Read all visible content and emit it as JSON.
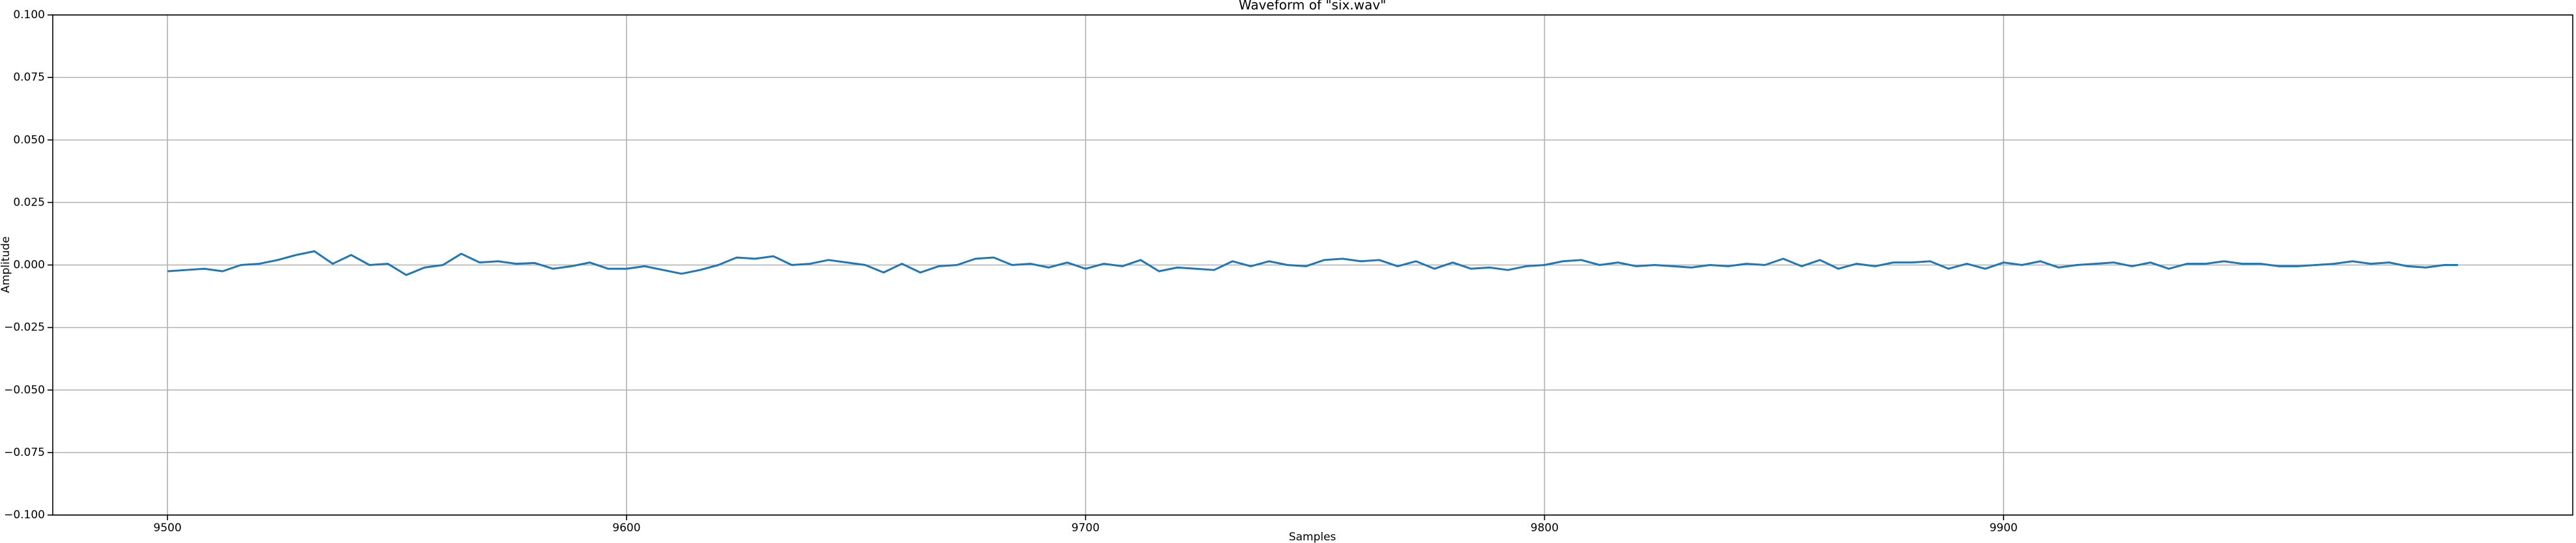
{
  "chart_data": {
    "type": "line",
    "title": "Waveform of \"six.wav\"",
    "x_label": "Samples",
    "y_label": "Amplitude",
    "x": [
      9500,
      9504,
      9508,
      9512,
      9516,
      9520,
      9524,
      9528,
      9532,
      9536,
      9540,
      9544,
      9548,
      9552,
      9556,
      9560,
      9564,
      9568,
      9572,
      9576,
      9580,
      9584,
      9588,
      9592,
      9596,
      9600,
      9604,
      9608,
      9612,
      9616,
      9620,
      9624,
      9628,
      9632,
      9636,
      9640,
      9644,
      9648,
      9652,
      9656,
      9660,
      9664,
      9668,
      9672,
      9676,
      9680,
      9684,
      9688,
      9692,
      9696,
      9700,
      9704,
      9708,
      9712,
      9716,
      9720,
      9724,
      9728,
      9732,
      9736,
      9740,
      9744,
      9748,
      9752,
      9756,
      9760,
      9764,
      9768,
      9772,
      9776,
      9780,
      9784,
      9788,
      9792,
      9796,
      9800,
      9804,
      9808,
      9812,
      9816,
      9820,
      9824,
      9828,
      9832,
      9836,
      9840,
      9844,
      9848,
      9852,
      9856,
      9860,
      9864,
      9868,
      9872,
      9876,
      9880,
      9884,
      9888,
      9892,
      9896,
      9900,
      9904,
      9908,
      9912,
      9916,
      9920,
      9924,
      9928,
      9932,
      9936,
      9940,
      9944,
      9948,
      9952,
      9956,
      9960,
      9964,
      9968,
      9972,
      9976,
      9980,
      9984,
      9988,
      9992,
      9996,
      9999
    ],
    "series": [
      {
        "color": "#1f77b4",
        "values": [
          -0.0025,
          -0.002,
          -0.0015,
          -0.0025,
          0.0,
          0.0005,
          0.002,
          0.004,
          0.0055,
          0.0005,
          0.004,
          0.0,
          0.0005,
          -0.004,
          -0.001,
          0.0,
          0.0045,
          0.001,
          0.0015,
          0.0005,
          0.0008,
          -0.0015,
          -0.0005,
          0.001,
          -0.0015,
          -0.0015,
          -0.0005,
          -0.002,
          -0.0035,
          -0.002,
          0.0,
          0.003,
          0.0025,
          0.0035,
          0.0,
          0.0005,
          0.002,
          0.001,
          0.0,
          -0.003,
          0.0005,
          -0.003,
          -0.0005,
          0.0,
          0.0025,
          0.003,
          0.0,
          0.0005,
          -0.001,
          0.001,
          -0.0015,
          0.0005,
          -0.0005,
          0.002,
          -0.0025,
          -0.001,
          -0.0015,
          -0.002,
          0.0015,
          -0.0005,
          0.0015,
          0.0,
          -0.0005,
          0.002,
          0.0025,
          0.0015,
          0.002,
          -0.0005,
          0.0015,
          -0.0015,
          0.001,
          -0.0015,
          -0.001,
          -0.002,
          -0.0005,
          0.0,
          0.0015,
          0.002,
          0.0,
          0.001,
          -0.0005,
          0.0,
          -0.0005,
          -0.001,
          0.0,
          -0.0005,
          0.0005,
          0.0,
          0.0025,
          -0.0005,
          0.002,
          -0.0015,
          0.0005,
          -0.0005,
          0.001,
          0.001,
          0.0015,
          -0.0015,
          0.0005,
          -0.0015,
          0.001,
          0.0,
          0.0015,
          -0.001,
          0.0,
          0.0005,
          0.001,
          -0.0005,
          0.001,
          -0.0015,
          0.0005,
          0.0005,
          0.0015,
          0.0005,
          0.0005,
          -0.0005,
          -0.0005,
          0.0,
          0.0005,
          0.0015,
          0.0005,
          0.001,
          -0.0005,
          -0.001,
          0.0,
          0.0
        ]
      }
    ],
    "xlim": [
      9475,
      10024
    ],
    "ylim": [
      -0.1,
      0.1
    ],
    "xticks": [
      9500,
      9600,
      9700,
      9800,
      9900
    ],
    "yticks": [
      {
        "value": -0.1,
        "label": "−0.100"
      },
      {
        "value": -0.075,
        "label": "−0.075"
      },
      {
        "value": -0.05,
        "label": "−0.050"
      },
      {
        "value": -0.025,
        "label": "−0.025"
      },
      {
        "value": 0,
        "label": "0.000"
      },
      {
        "value": 0.025,
        "label": "0.025"
      },
      {
        "value": 0.05,
        "label": "0.050"
      },
      {
        "value": 0.075,
        "label": "0.075"
      },
      {
        "value": 0.1,
        "label": "0.100"
      }
    ],
    "grid": true
  }
}
